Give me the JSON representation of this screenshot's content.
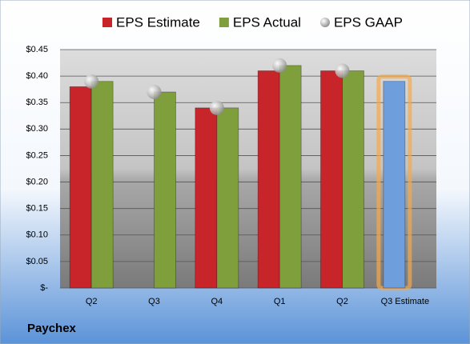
{
  "chart_data": {
    "type": "bar",
    "title": "Paychex",
    "categories": [
      "Q2",
      "Q3",
      "Q4",
      "Q1",
      "Q2",
      "Q3 Estimate"
    ],
    "series": [
      {
        "name": "EPS Estimate",
        "color": "#c8252b",
        "values": [
          0.38,
          null,
          0.34,
          0.41,
          0.41,
          0.39
        ]
      },
      {
        "name": "EPS Actual",
        "color": "#7e9f3c",
        "values": [
          0.39,
          0.37,
          0.34,
          0.42,
          0.41,
          null
        ]
      },
      {
        "name": "EPS GAAP",
        "color": "#b8b8b8",
        "marker": "sphere",
        "values": [
          0.39,
          0.37,
          0.34,
          0.42,
          0.41,
          null
        ]
      }
    ],
    "highlight": {
      "index": 5,
      "color": "#6e9fdc",
      "glow": "#f5a84a"
    },
    "ylim": [
      0,
      0.45
    ],
    "yticks": [
      {
        "value": 0,
        "label": "$-"
      },
      {
        "value": 0.05,
        "label": "$0.05"
      },
      {
        "value": 0.1,
        "label": "$0.10"
      },
      {
        "value": 0.15,
        "label": "$0.15"
      },
      {
        "value": 0.2,
        "label": "$0.20"
      },
      {
        "value": 0.25,
        "label": "$0.25"
      },
      {
        "value": 0.3,
        "label": "$0.30"
      },
      {
        "value": 0.35,
        "label": "$0.35"
      },
      {
        "value": 0.4,
        "label": "$0.40"
      },
      {
        "value": 0.45,
        "label": "$0.45"
      }
    ],
    "grid": true,
    "legend": "top"
  }
}
